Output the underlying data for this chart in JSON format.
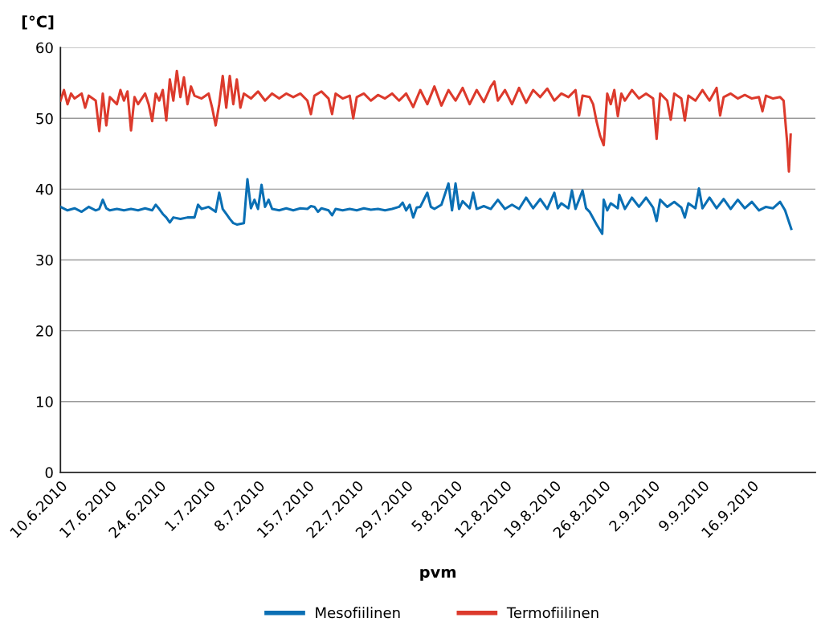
{
  "chart_data": {
    "type": "line",
    "xlabel": "pvm",
    "ylabel": "[°C]",
    "xlim": [
      "2010-06-10",
      "2010-09-25"
    ],
    "ylim": [
      0,
      60
    ],
    "yticks": [
      0,
      10,
      20,
      30,
      40,
      50,
      60
    ],
    "xticks": [
      {
        "value": "2010-06-10",
        "label": "10.6.2010"
      },
      {
        "value": "2010-06-17",
        "label": "17.6.2010"
      },
      {
        "value": "2010-06-24",
        "label": "24.6.2010"
      },
      {
        "value": "2010-07-01",
        "label": "1.7.2010"
      },
      {
        "value": "2010-07-08",
        "label": "8.7.2010"
      },
      {
        "value": "2010-07-15",
        "label": "15.7.2010"
      },
      {
        "value": "2010-07-22",
        "label": "22.7.2010"
      },
      {
        "value": "2010-07-29",
        "label": "29.7.2010"
      },
      {
        "value": "2010-08-05",
        "label": "5.8.2010"
      },
      {
        "value": "2010-08-12",
        "label": "12.8.2010"
      },
      {
        "value": "2010-08-19",
        "label": "19.8.2010"
      },
      {
        "value": "2010-08-26",
        "label": "26.8.2010"
      },
      {
        "value": "2010-09-02",
        "label": "2.9.2010"
      },
      {
        "value": "2010-09-09",
        "label": "9.9.2010"
      },
      {
        "value": "2010-09-16",
        "label": "16.9.2010"
      }
    ],
    "grid": "y",
    "legend": "bottom",
    "marker": "none",
    "line_style": "solid",
    "series": [
      {
        "name": "Mesofiilinen",
        "color": "#0a6fb4",
        "x": [
          "2010-06-10",
          "2010-06-11",
          "2010-06-12",
          "2010-06-13",
          "2010-06-14",
          "2010-06-15",
          "2010-06-15T12:00",
          "2010-06-16",
          "2010-06-16T12:00",
          "2010-06-17",
          "2010-06-18",
          "2010-06-19",
          "2010-06-20",
          "2010-06-21",
          "2010-06-22",
          "2010-06-23",
          "2010-06-23T12:00",
          "2010-06-24",
          "2010-06-24T12:00",
          "2010-06-25",
          "2010-06-25T12:00",
          "2010-06-26",
          "2010-06-27",
          "2010-06-28",
          "2010-06-29",
          "2010-06-29T12:00",
          "2010-06-30",
          "2010-07-01",
          "2010-07-02",
          "2010-07-02T12:00",
          "2010-07-03",
          "2010-07-03T12:00",
          "2010-07-04",
          "2010-07-04T12:00",
          "2010-07-05",
          "2010-07-06",
          "2010-07-06T12:00",
          "2010-07-07",
          "2010-07-07T12:00",
          "2010-07-08",
          "2010-07-08T12:00",
          "2010-07-09",
          "2010-07-09T12:00",
          "2010-07-10",
          "2010-07-11",
          "2010-07-12",
          "2010-07-13",
          "2010-07-14",
          "2010-07-15",
          "2010-07-15T12:00",
          "2010-07-16",
          "2010-07-16T12:00",
          "2010-07-17",
          "2010-07-18",
          "2010-07-18T12:00",
          "2010-07-19",
          "2010-07-20",
          "2010-07-21",
          "2010-07-22",
          "2010-07-23",
          "2010-07-24",
          "2010-07-25",
          "2010-07-26",
          "2010-07-27",
          "2010-07-28",
          "2010-07-28T12:00",
          "2010-07-29",
          "2010-07-29T12:00",
          "2010-07-30",
          "2010-07-30T12:00",
          "2010-07-31",
          "2010-08-01",
          "2010-08-01T12:00",
          "2010-08-02",
          "2010-08-03",
          "2010-08-04",
          "2010-08-04T12:00",
          "2010-08-05",
          "2010-08-05T12:00",
          "2010-08-06",
          "2010-08-07",
          "2010-08-07T12:00",
          "2010-08-08",
          "2010-08-09",
          "2010-08-10",
          "2010-08-11",
          "2010-08-12",
          "2010-08-13",
          "2010-08-14",
          "2010-08-15",
          "2010-08-16",
          "2010-08-17",
          "2010-08-18",
          "2010-08-19",
          "2010-08-19T12:00",
          "2010-08-20",
          "2010-08-21",
          "2010-08-21T12:00",
          "2010-08-22",
          "2010-08-23",
          "2010-08-23T12:00",
          "2010-08-24",
          "2010-08-25",
          "2010-08-25T19:00",
          "2010-08-26",
          "2010-08-26T12:00",
          "2010-08-27",
          "2010-08-28",
          "2010-08-28T05:00",
          "2010-08-29",
          "2010-08-30",
          "2010-08-31",
          "2010-09-01",
          "2010-09-02",
          "2010-09-02T12:00",
          "2010-09-03",
          "2010-09-04",
          "2010-09-05",
          "2010-09-06",
          "2010-09-06T12:00",
          "2010-09-07",
          "2010-09-08",
          "2010-09-08T12:00",
          "2010-09-09",
          "2010-09-10",
          "2010-09-11",
          "2010-09-12",
          "2010-09-13",
          "2010-09-14",
          "2010-09-15",
          "2010-09-16",
          "2010-09-17",
          "2010-09-18",
          "2010-09-19",
          "2010-09-20",
          "2010-09-20T17:00",
          "2010-09-21T14:00"
        ],
        "values": [
          37.5,
          37,
          37.3,
          36.8,
          37.5,
          37,
          37.2,
          38.5,
          37.3,
          37,
          37.2,
          37,
          37.2,
          37,
          37.3,
          37,
          37.8,
          37.2,
          36.5,
          36,
          35.3,
          36,
          35.8,
          36,
          36,
          37.8,
          37.2,
          37.5,
          36.8,
          39.5,
          37.2,
          36.5,
          35.8,
          35.2,
          35,
          35.2,
          41.4,
          37.3,
          38.5,
          37.2,
          40.6,
          37.5,
          38.5,
          37.2,
          37,
          37.3,
          37,
          37.3,
          37.2,
          37.6,
          37.5,
          36.8,
          37.3,
          37,
          36.3,
          37.2,
          37,
          37.2,
          37,
          37.3,
          37.1,
          37.2,
          37,
          37.2,
          37.5,
          38.1,
          37,
          37.8,
          36,
          37.4,
          37.5,
          39.5,
          37.5,
          37.2,
          37.8,
          40.8,
          37,
          40.8,
          37.2,
          38.3,
          37.3,
          39.5,
          37.2,
          37.6,
          37.2,
          38.5,
          37.2,
          37.8,
          37.2,
          38.8,
          37.3,
          38.6,
          37.2,
          39.5,
          37.3,
          38,
          37.3,
          39.8,
          37.2,
          39.8,
          37.3,
          36.8,
          35,
          33.7,
          38.5,
          37,
          38,
          37.3,
          39.2,
          37.2,
          38.8,
          37.5,
          38.8,
          37.4,
          35.5,
          38.5,
          37.5,
          38.2,
          37.4,
          36,
          38,
          37.3,
          40.1,
          37.3,
          38.8,
          37.3,
          38.6,
          37.2,
          38.5,
          37.3,
          38.2,
          37,
          37.5,
          37.3,
          38.2,
          37,
          34.4
        ]
      },
      {
        "name": "Termofiilinen",
        "color": "#dc3a2c",
        "x": [
          "2010-06-10",
          "2010-06-10T12:00",
          "2010-06-11",
          "2010-06-11T12:00",
          "2010-06-12",
          "2010-06-13",
          "2010-06-13T12:00",
          "2010-06-14",
          "2010-06-15",
          "2010-06-15T12:00",
          "2010-06-16",
          "2010-06-16T12:00",
          "2010-06-17",
          "2010-06-18",
          "2010-06-18T12:00",
          "2010-06-19",
          "2010-06-19T12:00",
          "2010-06-20",
          "2010-06-20T12:00",
          "2010-06-21",
          "2010-06-22",
          "2010-06-22T12:00",
          "2010-06-23",
          "2010-06-23T12:00",
          "2010-06-24",
          "2010-06-24T12:00",
          "2010-06-25",
          "2010-06-25T12:00",
          "2010-06-26",
          "2010-06-26T12:00",
          "2010-06-27",
          "2010-06-27T12:00",
          "2010-06-28",
          "2010-06-28T12:00",
          "2010-06-29",
          "2010-06-30",
          "2010-07-01",
          "2010-07-01T12:00",
          "2010-07-02",
          "2010-07-02T12:00",
          "2010-07-03",
          "2010-07-03T12:00",
          "2010-07-04",
          "2010-07-04T12:00",
          "2010-07-05",
          "2010-07-05T12:00",
          "2010-07-06",
          "2010-07-07",
          "2010-07-08",
          "2010-07-09",
          "2010-07-10",
          "2010-07-11",
          "2010-07-12",
          "2010-07-13",
          "2010-07-14",
          "2010-07-15",
          "2010-07-15T12:00",
          "2010-07-16",
          "2010-07-17",
          "2010-07-18",
          "2010-07-18T12:00",
          "2010-07-19",
          "2010-07-20",
          "2010-07-21",
          "2010-07-21T12:00",
          "2010-07-22",
          "2010-07-23",
          "2010-07-24",
          "2010-07-25",
          "2010-07-26",
          "2010-07-27",
          "2010-07-28",
          "2010-07-29",
          "2010-07-30",
          "2010-07-31",
          "2010-08-01",
          "2010-08-02",
          "2010-08-03",
          "2010-08-04",
          "2010-08-05",
          "2010-08-06",
          "2010-08-07",
          "2010-08-08",
          "2010-08-09",
          "2010-08-10",
          "2010-08-10T12:00",
          "2010-08-11",
          "2010-08-12",
          "2010-08-13",
          "2010-08-14",
          "2010-08-15",
          "2010-08-16",
          "2010-08-17",
          "2010-08-18",
          "2010-08-19",
          "2010-08-20",
          "2010-08-21",
          "2010-08-22",
          "2010-08-22T12:00",
          "2010-08-23",
          "2010-08-24",
          "2010-08-24T12:00",
          "2010-08-25",
          "2010-08-25T12:00",
          "2010-08-26",
          "2010-08-26T12:00",
          "2010-08-27",
          "2010-08-27T12:00",
          "2010-08-28",
          "2010-08-28T12:00",
          "2010-08-29",
          "2010-08-30",
          "2010-08-31",
          "2010-09-01",
          "2010-09-02",
          "2010-09-02T12:00",
          "2010-09-03",
          "2010-09-04",
          "2010-09-04T12:00",
          "2010-09-05",
          "2010-09-06",
          "2010-09-06T12:00",
          "2010-09-07",
          "2010-09-08",
          "2010-09-09",
          "2010-09-10",
          "2010-09-11",
          "2010-09-11T12:00",
          "2010-09-12",
          "2010-09-13",
          "2010-09-14",
          "2010-09-15",
          "2010-09-16",
          "2010-09-17",
          "2010-09-17T12:00",
          "2010-09-18",
          "2010-09-19",
          "2010-09-20",
          "2010-09-20T12:00",
          "2010-09-21",
          "2010-09-21T06:00",
          "2010-09-21T12:00"
        ],
        "values": [
          52.5,
          54,
          52,
          53.5,
          52.8,
          53.5,
          51.5,
          53.2,
          52.5,
          48.2,
          53.5,
          49,
          53,
          52,
          54,
          52.5,
          53.8,
          48.3,
          53,
          52,
          53.5,
          52,
          49.6,
          53.5,
          52.5,
          54,
          49.7,
          55.5,
          52.5,
          56.7,
          53,
          55.8,
          52,
          54.5,
          53.2,
          52.8,
          53.5,
          51.5,
          49,
          52,
          56,
          51.5,
          56,
          52,
          55.5,
          51.5,
          53.5,
          52.8,
          53.8,
          52.5,
          53.5,
          52.8,
          53.5,
          53,
          53.5,
          52.5,
          50.6,
          53.2,
          53.8,
          52.8,
          50.6,
          53.5,
          52.8,
          53.2,
          50,
          53,
          53.5,
          52.5,
          53.3,
          52.8,
          53.5,
          52.5,
          53.5,
          51.6,
          54,
          52,
          54.5,
          51.8,
          54,
          52.5,
          54.3,
          52,
          54,
          52.3,
          54.5,
          55.2,
          52.5,
          54,
          52,
          54.3,
          52.2,
          54,
          53,
          54.2,
          52.5,
          53.5,
          53,
          54,
          50.4,
          53.2,
          53,
          52,
          49.5,
          47.5,
          46.2,
          53.5,
          52,
          54,
          50.3,
          53.5,
          52.5,
          54,
          52.8,
          53.5,
          52.8,
          47.1,
          53.5,
          52.5,
          49.8,
          53.5,
          52.8,
          49.7,
          53.2,
          52.5,
          54,
          52.5,
          54.3,
          50.4,
          53,
          53.5,
          52.8,
          53.3,
          52.8,
          53,
          51,
          53.2,
          52.8,
          53,
          52.5,
          46.6,
          42.5,
          47.7
        ]
      }
    ]
  }
}
